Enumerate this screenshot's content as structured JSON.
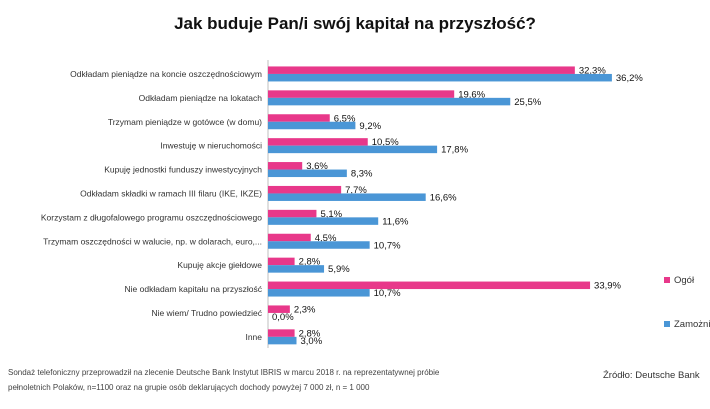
{
  "title": "Jak buduje Pan/i swój kapitał na przyszłość?",
  "footnote_line1": "Sondaż telefoniczny przeprowadził na zlecenie Deutsche Bank Instytut IBRIS w marcu 2018 r. na reprezentatywnej próbie",
  "footnote_line2": "pełnoletnich Polaków, n=1100 oraz na grupie osób deklarujących dochody powyżej 7 000 zł, n = 1 000",
  "source": "Źródło: Deutsche Bank",
  "colors": {
    "ogol": "#e8388a",
    "zamozni": "#4a96d6"
  },
  "chart_data": {
    "type": "bar",
    "orientation": "horizontal",
    "title": "Jak buduje Pan/i swój kapitał na przyszłość?",
    "categories": [
      "Odkładam pieniądze na koncie oszczędnościowym",
      "Odkładam pieniądze na lokatach",
      "Trzymam pieniądze w gotówce (w domu)",
      "Inwestuję w nieruchomości",
      "Kupuję jednostki funduszy inwestycyjnych",
      "Odkładam składki w ramach III filaru (IKE, IKZE)",
      "Korzystam z długofalowego programu oszczędnościowego",
      "Trzymam oszczędności w walucie, np. w dolarach, euro,...",
      "Kupuję akcje giełdowe",
      "Nie odkładam kapitału na przyszłość",
      "Nie wiem/ Trudno powiedzieć",
      "Inne"
    ],
    "series": [
      {
        "name": "Ogół",
        "values": [
          32.3,
          19.6,
          6.5,
          10.5,
          3.6,
          7.7,
          5.1,
          4.5,
          2.8,
          33.9,
          2.3,
          2.8
        ],
        "labels": [
          "32,3%",
          "19,6%",
          "6,5%",
          "10,5%",
          "3,6%",
          "7,7%",
          "5,1%",
          "4,5%",
          "2,8%",
          "33,9%",
          "2,3%",
          "2,8%"
        ]
      },
      {
        "name": "Zamożni",
        "values": [
          36.2,
          25.5,
          9.2,
          17.8,
          8.3,
          16.6,
          11.6,
          10.7,
          5.9,
          10.7,
          0.0,
          3.0
        ],
        "labels": [
          "36,2%",
          "25,5%",
          "9,2%",
          "17,8%",
          "8,3%",
          "16,6%",
          "11,6%",
          "10,7%",
          "5,9%",
          "10,7%",
          "0,0%",
          "3,0%"
        ]
      }
    ],
    "xlim": [
      0,
      40
    ],
    "grid": false,
    "legend_position": "right"
  }
}
